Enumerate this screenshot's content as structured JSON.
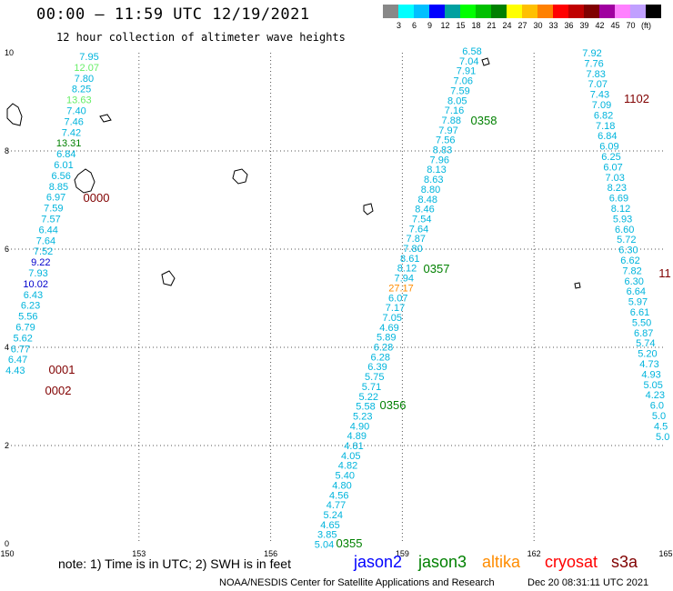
{
  "header": {
    "title": "00:00 – 11:59 UTC 12/19/2021",
    "subtitle": "12 hour collection of altimeter wave heights"
  },
  "color_scale": {
    "swatches": [
      "#888888",
      "#00ffff",
      "#00c0ff",
      "#0000ff",
      "#00a0a0",
      "#00ff00",
      "#00c000",
      "#008000",
      "#ffff00",
      "#ffc000",
      "#ff8000",
      "#ff0000",
      "#c00000",
      "#800000",
      "#a000a0",
      "#ff80ff",
      "#c0a0ff",
      "#000000"
    ],
    "labels": [
      "3",
      "6",
      "9",
      "12",
      "15",
      "18",
      "21",
      "24",
      "27",
      "30",
      "33",
      "36",
      "39",
      "42",
      "45",
      "70",
      "(ft)"
    ]
  },
  "axes": {
    "x_ticks": [
      "150",
      "153",
      "156",
      "159",
      "162",
      "165"
    ],
    "y_ticks": [
      "0",
      "2",
      "4",
      "6",
      "8",
      "10"
    ]
  },
  "colors": {
    "cyan": "#00b4dc",
    "blue": "#0000cc",
    "green": "#008000",
    "lightgreen": "#66ee66",
    "orange": "#ff8c00",
    "maroon": "#800000"
  },
  "tracks": [
    {
      "id": "t0",
      "tag": "0000",
      "tag_color": "#800000",
      "values": [
        [
          "7.95",
          "cyan"
        ],
        [
          "12.07",
          "lightgreen"
        ],
        [
          "7.80",
          "cyan"
        ],
        [
          "8.25",
          "cyan"
        ],
        [
          "13.63",
          "lightgreen"
        ],
        [
          "7.40",
          "cyan"
        ],
        [
          "7.46",
          "cyan"
        ],
        [
          "7.42",
          "cyan"
        ],
        [
          "13.31",
          "green"
        ],
        [
          "6.84",
          "cyan"
        ],
        [
          "6.01",
          "cyan"
        ],
        [
          "6.56",
          "cyan"
        ],
        [
          "8.85",
          "cyan"
        ],
        [
          "6.97",
          "cyan"
        ],
        [
          "7.59",
          "cyan"
        ],
        [
          "7.57",
          "cyan"
        ],
        [
          "6.44",
          "cyan"
        ],
        [
          "7.64",
          "cyan"
        ],
        [
          "7.52",
          "cyan"
        ],
        [
          "9.22",
          "blue"
        ],
        [
          "7.93",
          "cyan"
        ],
        [
          "10.02",
          "blue"
        ],
        [
          "6.43",
          "cyan"
        ],
        [
          "6.23",
          "cyan"
        ],
        [
          "5.56",
          "cyan"
        ],
        [
          "6.79",
          "cyan"
        ],
        [
          "5.62",
          "cyan"
        ],
        [
          "6.77",
          "cyan"
        ],
        [
          "6.47",
          "cyan"
        ],
        [
          "4.43",
          "cyan"
        ]
      ]
    },
    {
      "id": "t1",
      "values": [
        [
          "6.58",
          "cyan"
        ],
        [
          "7.04",
          "cyan"
        ],
        [
          "7.91",
          "cyan"
        ],
        [
          "7.06",
          "cyan"
        ],
        [
          "7.59",
          "cyan"
        ],
        [
          "8.05",
          "cyan"
        ],
        [
          "7.16",
          "cyan"
        ],
        [
          "7.88",
          "cyan"
        ],
        [
          "7.97",
          "cyan"
        ],
        [
          "7.56",
          "cyan"
        ],
        [
          "8.83",
          "cyan"
        ],
        [
          "7.96",
          "cyan"
        ],
        [
          "8.13",
          "cyan"
        ],
        [
          "8.63",
          "cyan"
        ],
        [
          "8.80",
          "cyan"
        ],
        [
          "8.48",
          "cyan"
        ],
        [
          "8.46",
          "cyan"
        ],
        [
          "7.54",
          "cyan"
        ],
        [
          "7.64",
          "cyan"
        ],
        [
          "7.87",
          "cyan"
        ],
        [
          "7.80",
          "cyan"
        ],
        [
          "8.61",
          "cyan"
        ],
        [
          "8.12",
          "cyan"
        ],
        [
          "7.94",
          "cyan"
        ],
        [
          "27.17",
          "orange"
        ],
        [
          "6.07",
          "cyan"
        ],
        [
          "7.17",
          "cyan"
        ],
        [
          "7.05",
          "cyan"
        ],
        [
          "4.69",
          "cyan"
        ],
        [
          "5.89",
          "cyan"
        ],
        [
          "6.28",
          "cyan"
        ],
        [
          "6.28",
          "cyan"
        ],
        [
          "6.39",
          "cyan"
        ],
        [
          "5.75",
          "cyan"
        ],
        [
          "5.71",
          "cyan"
        ],
        [
          "5.22",
          "cyan"
        ],
        [
          "5.58",
          "cyan"
        ],
        [
          "5.23",
          "cyan"
        ],
        [
          "4.90",
          "cyan"
        ],
        [
          "4.89",
          "cyan"
        ],
        [
          "4.81",
          "cyan"
        ],
        [
          "4.05",
          "cyan"
        ],
        [
          "4.82",
          "cyan"
        ],
        [
          "5.40",
          "cyan"
        ],
        [
          "4.80",
          "cyan"
        ],
        [
          "4.56",
          "cyan"
        ],
        [
          "4.77",
          "cyan"
        ],
        [
          "5.24",
          "cyan"
        ],
        [
          "4.65",
          "cyan"
        ],
        [
          "3.85",
          "cyan"
        ],
        [
          "5.04",
          "cyan"
        ]
      ]
    },
    {
      "id": "t2",
      "values": [
        [
          "7.92",
          "cyan"
        ],
        [
          "7.76",
          "cyan"
        ],
        [
          "7.83",
          "cyan"
        ],
        [
          "7.07",
          "cyan"
        ],
        [
          "7.43",
          "cyan"
        ],
        [
          "7.09",
          "cyan"
        ],
        [
          "6.82",
          "cyan"
        ],
        [
          "7.18",
          "cyan"
        ],
        [
          "6.84",
          "cyan"
        ],
        [
          "6.09",
          "cyan"
        ],
        [
          "6.25",
          "cyan"
        ],
        [
          "6.07",
          "cyan"
        ],
        [
          "7.03",
          "cyan"
        ],
        [
          "8.23",
          "cyan"
        ],
        [
          "6.69",
          "cyan"
        ],
        [
          "8.12",
          "cyan"
        ],
        [
          "5.93",
          "cyan"
        ],
        [
          "6.60",
          "cyan"
        ],
        [
          "5.72",
          "cyan"
        ],
        [
          "6.30",
          "cyan"
        ],
        [
          "6.62",
          "cyan"
        ],
        [
          "7.82",
          "cyan"
        ],
        [
          "6.30",
          "cyan"
        ],
        [
          "6.64",
          "cyan"
        ],
        [
          "5.97",
          "cyan"
        ],
        [
          "6.61",
          "cyan"
        ],
        [
          "5.50",
          "cyan"
        ],
        [
          "6.87",
          "cyan"
        ],
        [
          "5.74",
          "cyan"
        ],
        [
          "5.20",
          "cyan"
        ],
        [
          "4.73",
          "cyan"
        ],
        [
          "4.93",
          "cyan"
        ],
        [
          "5.05",
          "cyan"
        ],
        [
          "4.23",
          "cyan"
        ],
        [
          "6.0",
          "cyan"
        ],
        [
          "5.0",
          "cyan"
        ],
        [
          "4.5",
          "cyan"
        ],
        [
          "5.0",
          "cyan"
        ]
      ]
    }
  ],
  "time_tags": [
    {
      "text": "0000",
      "color": "#800000"
    },
    {
      "text": "0001",
      "color": "#800000"
    },
    {
      "text": "0002",
      "color": "#800000"
    },
    {
      "text": "0355",
      "color": "#008000"
    },
    {
      "text": "0356",
      "color": "#008000"
    },
    {
      "text": "0357",
      "color": "#008000"
    },
    {
      "text": "0358",
      "color": "#008000"
    },
    {
      "text": "1102",
      "color": "#800000"
    },
    {
      "text": "11",
      "color": "#800000"
    }
  ],
  "footer": {
    "note": "note:  1) Time is in UTC;  2) SWH is in feet",
    "satellites": [
      {
        "name": "jason2",
        "color": "#0000ff"
      },
      {
        "name": "jason3",
        "color": "#008000"
      },
      {
        "name": "altika",
        "color": "#ff8c00"
      },
      {
        "name": "cryosat",
        "color": "#ff0000"
      },
      {
        "name": "s3a",
        "color": "#800000"
      }
    ],
    "credit": "NOAA/NESDIS Center for Satellite Applications and Research",
    "timestamp": "Dec 20 08:31:11 UTC 2021"
  }
}
